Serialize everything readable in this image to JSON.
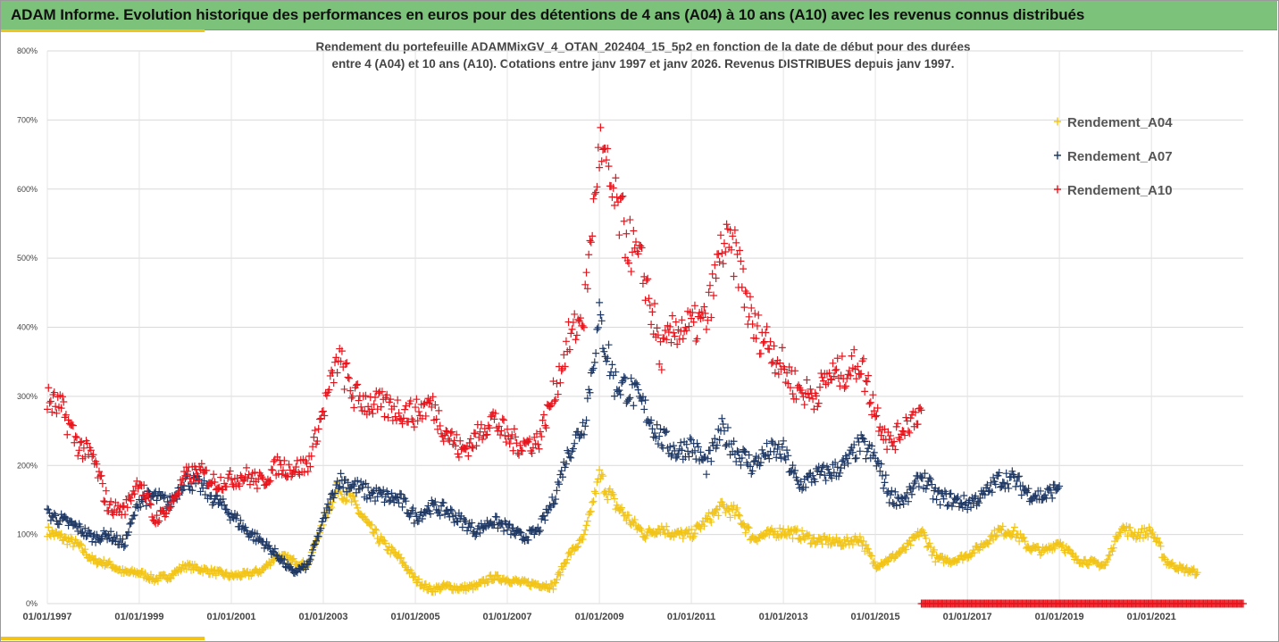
{
  "header": {
    "title": "ADAM Informe. Evolution historique des performances en euros pour des détentions de 4 ans (A04) à 10 ans (A10) avec les revenus connus distribués"
  },
  "colors": {
    "header_bg": "#7cc27a",
    "accent": "#f2c417",
    "A04": "#f2c417",
    "A07": "#1f3864",
    "A10": "#e8141c"
  },
  "chart_data": {
    "type": "scatter",
    "title_line1": "Rendement du portefeuille ADAMMixGV_4_OTAN_202404_15_5p2  en fonction de la date de début pour des durées",
    "title_line2": "entre 4 (A04) et 10 ans (A10). Cotations entre janv 1997 et janv 2026. Revenus DISTRIBUES depuis janv 1997.",
    "xlabel": "",
    "ylabel": "",
    "x_range": [
      "1997-01-01",
      "2022-12-31"
    ],
    "ylim": [
      0,
      8
    ],
    "y_tick_labels": [
      "0%",
      "100%",
      "200%",
      "300%",
      "400%",
      "500%",
      "600%",
      "700%",
      "800%"
    ],
    "x_tick_labels": [
      "01/01/1997",
      "01/01/1999",
      "01/01/2001",
      "01/01/2003",
      "01/01/2005",
      "01/01/2007",
      "01/01/2009",
      "01/01/2011",
      "01/01/2013",
      "01/01/2015",
      "01/01/2017",
      "01/01/2019",
      "01/01/2021"
    ],
    "grid": "horizontal",
    "legend_position": "top-right",
    "series": [
      {
        "name": "Rendement_A04",
        "color": "#f2c417",
        "x": [
          "1997-01-01",
          "1997-05-01",
          "1997-09-01",
          "1998-01-01",
          "1998-05-01",
          "1998-09-01",
          "1999-01-01",
          "1999-05-01",
          "1999-09-01",
          "2000-01-01",
          "2000-05-01",
          "2000-09-01",
          "2001-01-01",
          "2001-05-01",
          "2001-09-01",
          "2002-01-01",
          "2002-05-01",
          "2002-09-01",
          "2003-01-01",
          "2003-05-01",
          "2003-09-01",
          "2004-01-01",
          "2004-05-01",
          "2004-09-01",
          "2005-01-01",
          "2005-05-01",
          "2005-09-01",
          "2006-01-01",
          "2006-05-01",
          "2006-09-01",
          "2007-01-01",
          "2007-05-01",
          "2007-09-01",
          "2008-01-01",
          "2008-05-01",
          "2008-09-01",
          "2009-01-01",
          "2009-05-01",
          "2009-09-01",
          "2010-01-01",
          "2010-05-01",
          "2010-09-01",
          "2011-01-01",
          "2011-05-01",
          "2011-09-01",
          "2012-01-01",
          "2012-05-01",
          "2012-09-01",
          "2013-01-01",
          "2013-05-01",
          "2013-09-01",
          "2014-01-01",
          "2014-05-01",
          "2014-09-01",
          "2015-01-01",
          "2015-05-01",
          "2015-09-01",
          "2016-01-01",
          "2016-05-01",
          "2016-09-01",
          "2017-01-01",
          "2017-05-01",
          "2017-09-01",
          "2018-01-01",
          "2018-05-01",
          "2018-09-01",
          "2019-01-01",
          "2019-05-01",
          "2019-09-01",
          "2020-01-01",
          "2020-05-01",
          "2020-09-01",
          "2021-01-01",
          "2021-05-01",
          "2021-09-01",
          "2022-01-01"
        ],
        "y": [
          1.05,
          0.95,
          0.85,
          0.62,
          0.58,
          0.45,
          0.45,
          0.35,
          0.4,
          0.55,
          0.5,
          0.45,
          0.4,
          0.42,
          0.48,
          0.7,
          0.62,
          0.55,
          1.2,
          1.7,
          1.45,
          1.1,
          0.85,
          0.65,
          0.35,
          0.2,
          0.25,
          0.22,
          0.25,
          0.38,
          0.35,
          0.3,
          0.28,
          0.25,
          0.7,
          0.95,
          1.85,
          1.45,
          1.2,
          1.0,
          1.1,
          1.0,
          1.0,
          1.2,
          1.4,
          1.3,
          0.95,
          1.0,
          1.05,
          1.0,
          0.92,
          0.9,
          0.88,
          0.95,
          0.55,
          0.65,
          0.8,
          1.05,
          0.65,
          0.62,
          0.7,
          0.85,
          1.05,
          1.05,
          0.82,
          0.75,
          0.9,
          0.65,
          0.6,
          0.55,
          1.1,
          1.0,
          1.05,
          0.6,
          0.5,
          0.45
        ]
      },
      {
        "name": "Rendement_A07",
        "color": "#1f3864",
        "x": [
          "1997-01-01",
          "1997-05-01",
          "1997-09-01",
          "1998-01-01",
          "1998-05-01",
          "1998-09-01",
          "1999-01-01",
          "1999-05-01",
          "1999-09-01",
          "2000-01-01",
          "2000-05-01",
          "2000-09-01",
          "2001-01-01",
          "2001-05-01",
          "2001-09-01",
          "2002-01-01",
          "2002-05-01",
          "2002-09-01",
          "2003-01-01",
          "2003-05-01",
          "2003-09-01",
          "2004-01-01",
          "2004-05-01",
          "2004-09-01",
          "2005-01-01",
          "2005-05-01",
          "2005-09-01",
          "2006-01-01",
          "2006-05-01",
          "2006-09-01",
          "2007-01-01",
          "2007-05-01",
          "2007-09-01",
          "2008-01-01",
          "2008-05-01",
          "2008-09-01",
          "2009-01-01",
          "2009-05-01",
          "2009-09-01",
          "2010-01-01",
          "2010-05-01",
          "2010-09-01",
          "2011-01-01",
          "2011-05-01",
          "2011-09-01",
          "2012-01-01",
          "2012-05-01",
          "2012-09-01",
          "2013-01-01",
          "2013-05-01",
          "2013-09-01",
          "2014-01-01",
          "2014-05-01",
          "2014-09-01",
          "2015-01-01",
          "2015-05-01",
          "2015-09-01",
          "2016-01-01",
          "2016-05-01",
          "2016-09-01",
          "2017-01-01",
          "2017-05-01",
          "2017-09-01",
          "2018-01-01",
          "2018-05-01",
          "2018-09-01",
          "2019-01-01"
        ],
        "y": [
          1.3,
          1.2,
          1.1,
          0.95,
          1.0,
          0.85,
          1.5,
          1.55,
          1.45,
          1.8,
          1.7,
          1.5,
          1.3,
          1.05,
          0.9,
          0.7,
          0.45,
          0.55,
          1.2,
          1.8,
          1.7,
          1.6,
          1.55,
          1.5,
          1.25,
          1.4,
          1.35,
          1.2,
          1.05,
          1.2,
          1.1,
          0.95,
          1.05,
          1.5,
          2.2,
          2.6,
          4.1,
          3.2,
          3.1,
          2.8,
          2.4,
          2.2,
          2.3,
          2.0,
          2.5,
          2.2,
          2.0,
          2.2,
          2.2,
          1.7,
          1.85,
          1.9,
          2.0,
          2.3,
          2.1,
          1.55,
          1.5,
          1.85,
          1.55,
          1.5,
          1.45,
          1.55,
          1.8,
          1.8,
          1.6,
          1.55,
          1.7
        ]
      },
      {
        "name": "Rendement_A10",
        "color": "#e8141c",
        "x": [
          "1997-01-01",
          "1997-05-01",
          "1997-09-01",
          "1998-01-01",
          "1998-05-01",
          "1998-09-01",
          "1999-01-01",
          "1999-05-01",
          "1999-09-01",
          "2000-01-01",
          "2000-05-01",
          "2000-09-01",
          "2001-01-01",
          "2001-05-01",
          "2001-09-01",
          "2002-01-01",
          "2002-05-01",
          "2002-09-01",
          "2003-01-01",
          "2003-05-01",
          "2003-09-01",
          "2004-01-01",
          "2004-05-01",
          "2004-09-01",
          "2005-01-01",
          "2005-05-01",
          "2005-09-01",
          "2006-01-01",
          "2006-05-01",
          "2006-09-01",
          "2007-01-01",
          "2007-05-01",
          "2007-09-01",
          "2008-01-01",
          "2008-05-01",
          "2008-09-01",
          "2009-01-01",
          "2009-05-01",
          "2009-09-01",
          "2010-01-01",
          "2010-05-01",
          "2010-09-01",
          "2011-01-01",
          "2011-05-01",
          "2011-09-01",
          "2012-01-01",
          "2012-05-01",
          "2012-09-01",
          "2013-01-01",
          "2013-05-01",
          "2013-09-01",
          "2014-01-01",
          "2014-05-01",
          "2014-09-01",
          "2015-01-01",
          "2015-05-01",
          "2015-09-01",
          "2016-01-01"
        ],
        "y": [
          2.95,
          2.8,
          2.3,
          2.1,
          1.4,
          1.35,
          1.8,
          1.2,
          1.4,
          1.85,
          1.9,
          1.75,
          1.8,
          1.85,
          1.75,
          2.0,
          1.95,
          2.0,
          2.8,
          3.55,
          3.0,
          2.9,
          2.85,
          2.8,
          2.75,
          2.9,
          2.5,
          2.2,
          2.4,
          2.7,
          2.4,
          2.3,
          2.35,
          3.0,
          3.8,
          4.2,
          6.6,
          5.8,
          5.2,
          4.7,
          3.6,
          4.0,
          4.0,
          4.1,
          5.2,
          5.0,
          4.0,
          3.8,
          3.4,
          3.1,
          3.0,
          3.3,
          3.35,
          3.5,
          2.8,
          2.3,
          2.6,
          2.8
        ]
      },
      {
        "name": "",
        "color": "#e8141c",
        "x": [
          "2016-01-01",
          "2022-12-31"
        ],
        "y": [
          0,
          0
        ],
        "note": ""
      }
    ]
  },
  "legend": [
    {
      "label": "Rendement_A04",
      "color": "#f2c417"
    },
    {
      "label": "Rendement_A07",
      "color": "#1f3864"
    },
    {
      "label": "Rendement_A10",
      "color": "#e8141c"
    }
  ]
}
